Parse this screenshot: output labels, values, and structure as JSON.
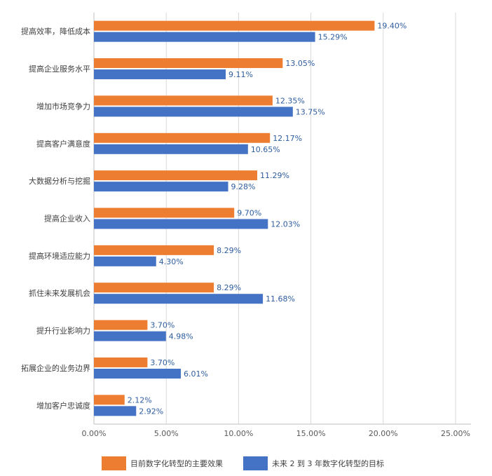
{
  "chart_data": {
    "type": "bar",
    "orientation": "horizontal",
    "categories": [
      "提高效率，降低成本",
      "提高企业服务水平",
      "增加市场竞争力",
      "提高客户满意度",
      "大数据分析与挖掘",
      "提高企业收入",
      "提高环境适应能力",
      "抓住未来发展机会",
      "提升行业影响力",
      "拓展企业的业务边界",
      "增加客户忠诚度"
    ],
    "series": [
      {
        "name": "目前数字化转型的主要效果",
        "color": "#ED7D31",
        "values": [
          19.4,
          13.05,
          12.35,
          12.17,
          11.29,
          9.7,
          8.29,
          8.29,
          3.7,
          3.7,
          2.12
        ],
        "labels": [
          "19.40%",
          "13.05%",
          "12.35%",
          "12.17%",
          "11.29%",
          "9.70%",
          "8.29%",
          "8.29%",
          "3.70%",
          "3.70%",
          "2.12%"
        ]
      },
      {
        "name": "未来 2 到 3 年数字化转型的目标",
        "color": "#4472C4",
        "values": [
          15.29,
          9.11,
          13.75,
          10.65,
          9.28,
          12.03,
          4.3,
          11.68,
          4.98,
          6.01,
          2.92
        ],
        "labels": [
          "15.29%",
          "9.11%",
          "13.75%",
          "10.65%",
          "9.28%",
          "12.03%",
          "4.30%",
          "11.68%",
          "4.98%",
          "6.01%",
          "2.92%"
        ]
      }
    ],
    "xlim": [
      0,
      25
    ],
    "xticks": [
      0,
      5,
      10,
      15,
      20,
      25
    ],
    "xtick_labels": [
      "0.00%",
      "5.00%",
      "10.00%",
      "15.00%",
      "20.00%",
      "25.00%"
    ],
    "grid": "vertical",
    "legend_position": "bottom",
    "title": "",
    "xlabel": "",
    "ylabel": ""
  }
}
